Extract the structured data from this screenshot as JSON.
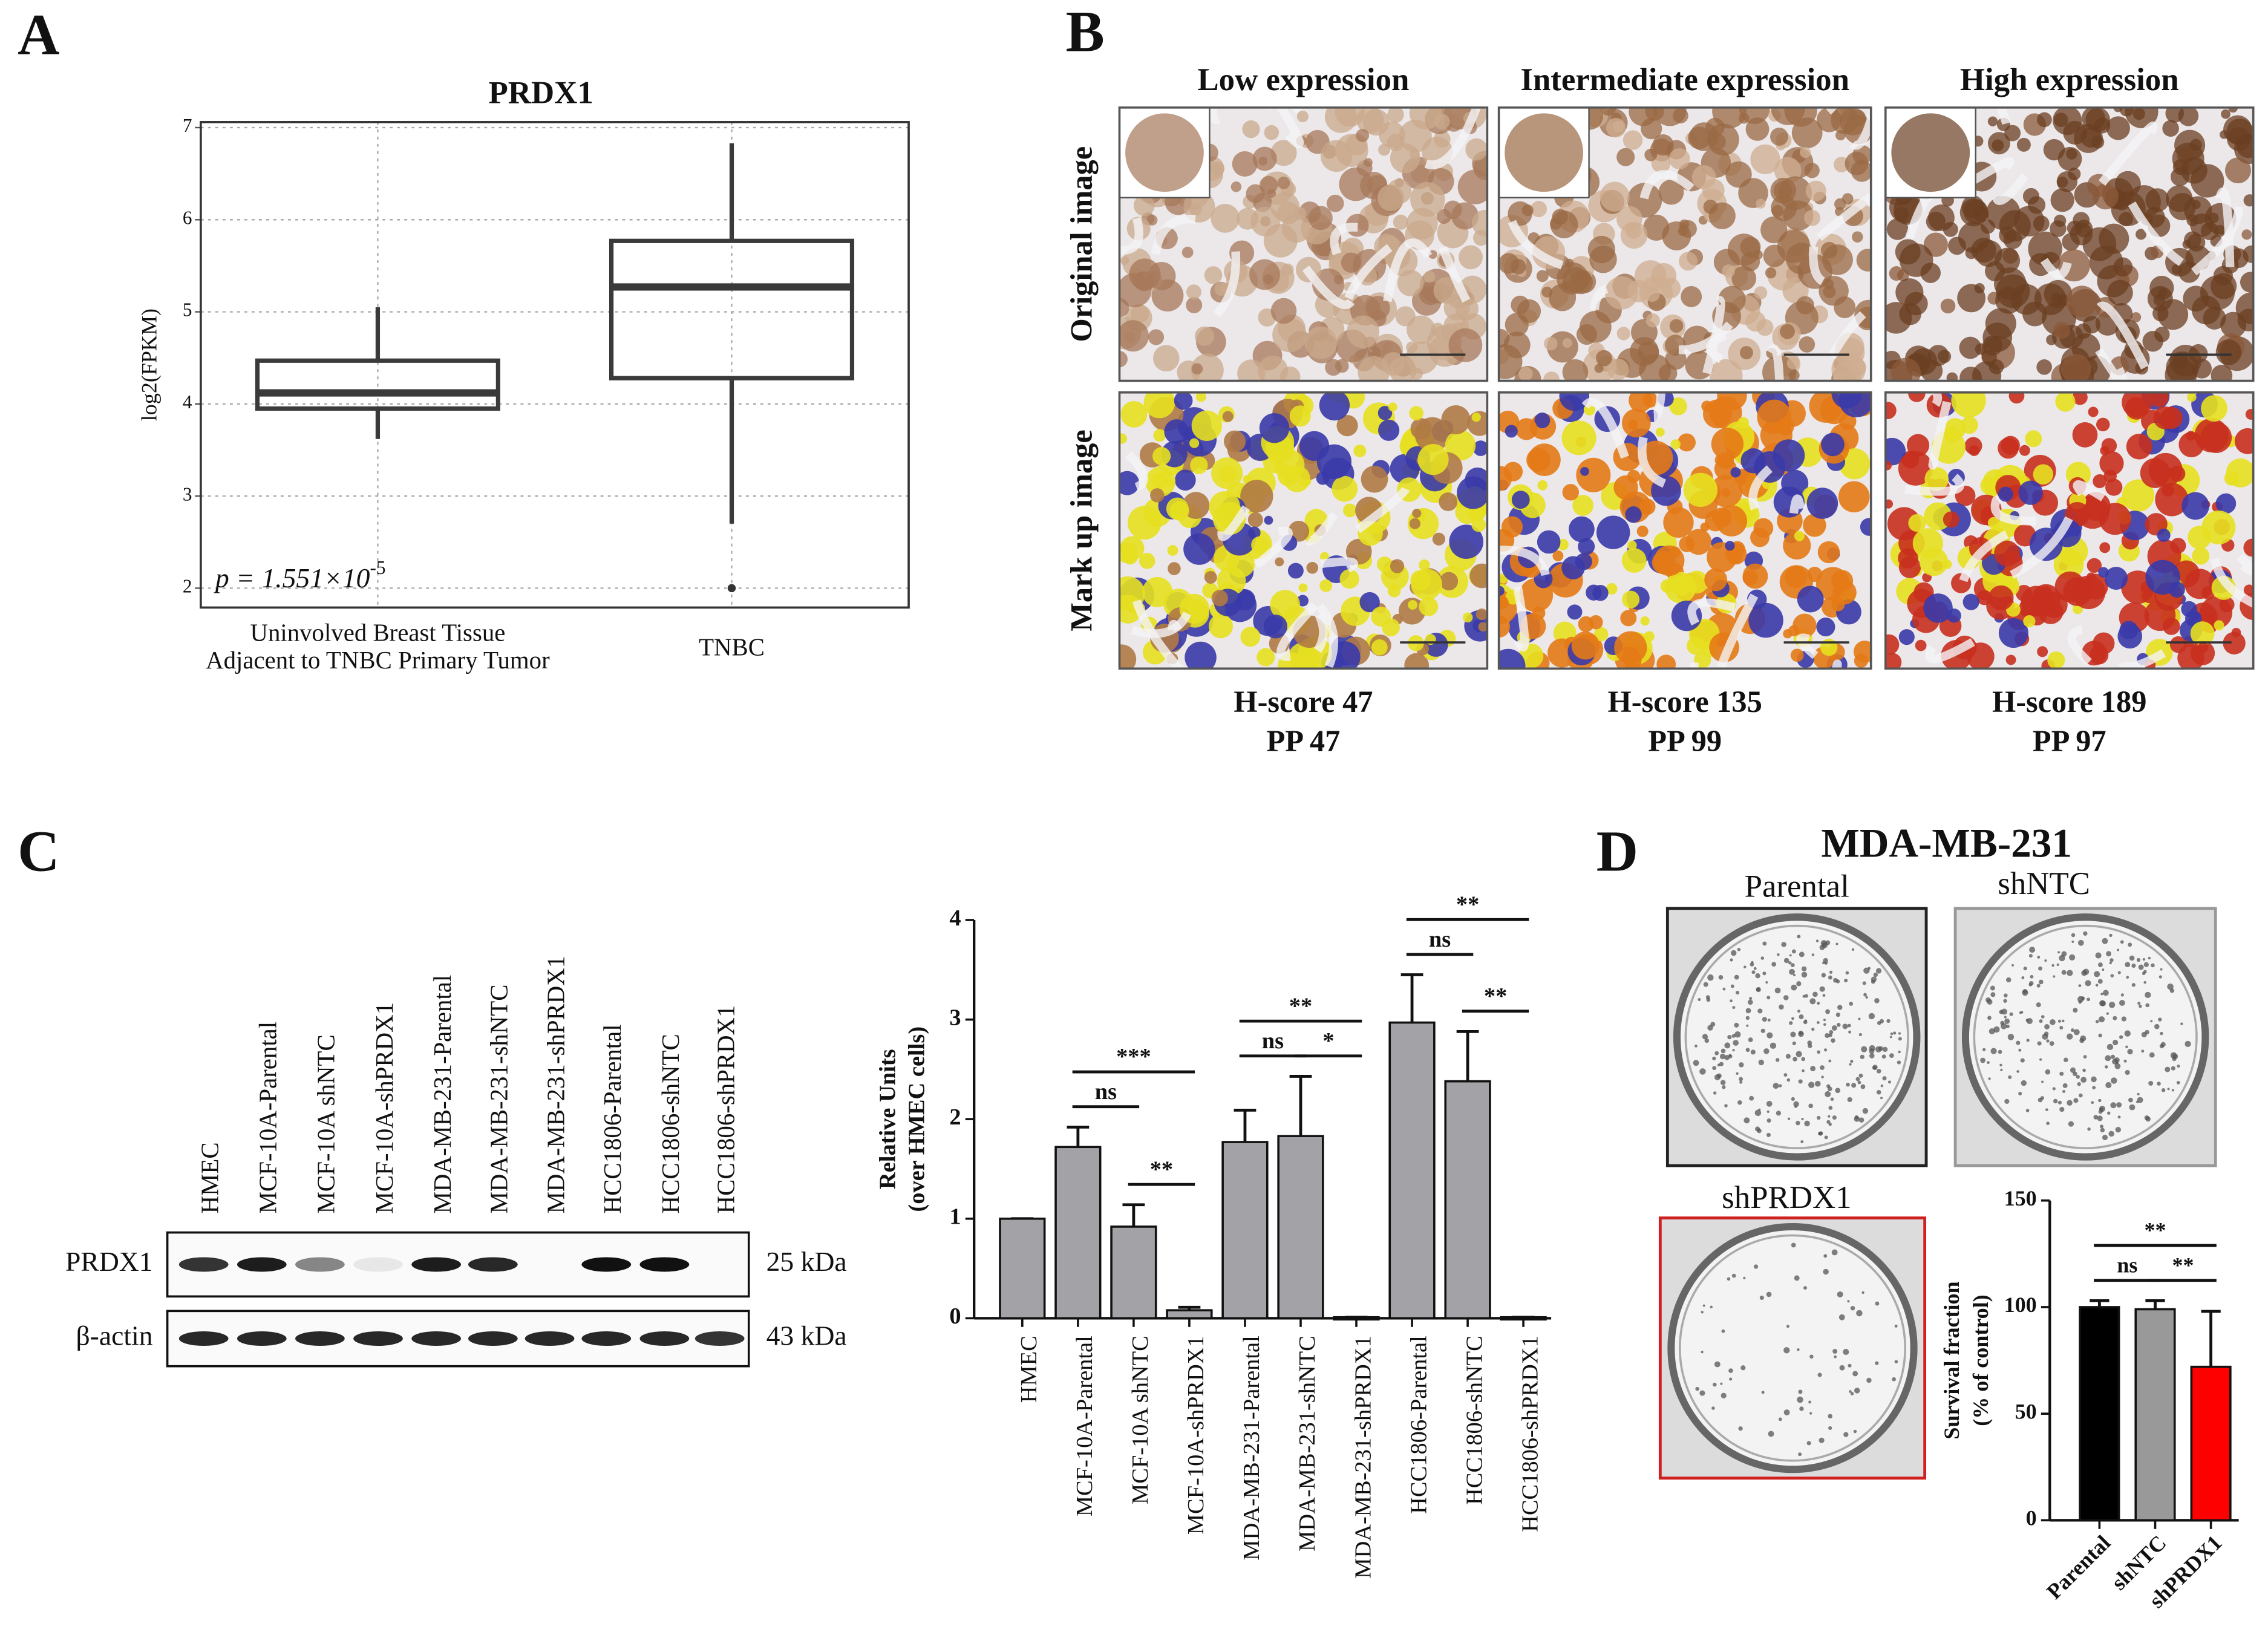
{
  "panel_labels": [
    "A",
    "B",
    "C",
    "D"
  ],
  "chart_data": [
    {
      "type": "box",
      "title": "PRDX1",
      "y_label": "log2(FPKM)",
      "categories": [
        [
          "Uninvolved Breast Tissue",
          "Adjacent to TNBC Primary Tumor"
        ],
        [
          "TNBC"
        ]
      ],
      "boxes": [
        {
          "whislo": 3.62,
          "q1": 3.95,
          "median": 4.12,
          "q3": 4.47,
          "whishi": 5.05,
          "fliers": []
        },
        {
          "whislo": 2.7,
          "q1": 4.28,
          "median": 5.27,
          "q3": 5.77,
          "whishi": 6.83,
          "fliers": [
            2.0
          ]
        }
      ],
      "ylim": [
        1.79,
        7.06
      ],
      "yticks": [
        2,
        3,
        4,
        5,
        6,
        7
      ],
      "grid": true,
      "annotation": {
        "text": "p = 1.551×10",
        "superscript": "-5"
      }
    },
    {
      "type": "bar",
      "y_label": [
        "Relative Units",
        "(over HMEC cells)"
      ],
      "categories": [
        "HMEC",
        "MCF-10A-Parental",
        "MCF-10A shNTC",
        "MCF-10A-shPRDX1",
        "MDA-MB-231-Parental",
        "MDA-MB-231-shNTC",
        "MDA-MB-231-shPRDX1",
        "HCC1806-Parental",
        "HCC1806-shNTC",
        "HCC1806-shPRDX1"
      ],
      "values": [
        1.0,
        1.72,
        0.92,
        0.08,
        1.77,
        1.83,
        0.01,
        2.97,
        2.38,
        0.01
      ],
      "errors": [
        0,
        0.2,
        0.22,
        0.03,
        0.32,
        0.6,
        0,
        0.48,
        0.5,
        0
      ],
      "color": "#a3a3a7",
      "ylim": [
        0,
        4
      ],
      "yticks": [
        0,
        1,
        2,
        3,
        4
      ],
      "significance": [
        {
          "between": [
            "MCF-10A-Parental",
            "MCF-10A shNTC"
          ],
          "label": "ns"
        },
        {
          "between": [
            "MCF-10A shNTC",
            "MCF-10A-shPRDX1"
          ],
          "label": "**"
        },
        {
          "between": [
            "MCF-10A-Parental",
            "MCF-10A-shPRDX1"
          ],
          "label": "***"
        },
        {
          "between": [
            "MDA-MB-231-Parental",
            "MDA-MB-231-shNTC"
          ],
          "label": "ns"
        },
        {
          "between": [
            "MDA-MB-231-shNTC",
            "MDA-MB-231-shPRDX1"
          ],
          "label": "*"
        },
        {
          "between": [
            "MDA-MB-231-Parental",
            "MDA-MB-231-shPRDX1"
          ],
          "label": "**"
        },
        {
          "between": [
            "HCC1806-Parental",
            "HCC1806-shNTC"
          ],
          "label": "ns"
        },
        {
          "between": [
            "HCC1806-shNTC",
            "HCC1806-shPRDX1"
          ],
          "label": "**"
        },
        {
          "between": [
            "HCC1806-Parental",
            "HCC1806-shPRDX1"
          ],
          "label": "**"
        }
      ]
    },
    {
      "type": "bar",
      "y_label": [
        "Survival fraction",
        "(% of control)"
      ],
      "categories": [
        "Parental",
        "shNTC",
        "shPRDX1"
      ],
      "values": [
        100,
        99,
        72
      ],
      "errors": [
        3,
        4,
        26
      ],
      "colors": [
        "#000000",
        "#999999",
        "#ff0000"
      ],
      "ylim": [
        0,
        150
      ],
      "yticks": [
        0,
        50,
        100,
        150
      ],
      "significance": [
        {
          "between": [
            "Parental",
            "shNTC"
          ],
          "label": "ns"
        },
        {
          "between": [
            "shNTC",
            "shPRDX1"
          ],
          "label": "**"
        },
        {
          "between": [
            "Parental",
            "shPRDX1"
          ],
          "label": "**"
        }
      ]
    }
  ],
  "ihc": {
    "columns": [
      "Low expression",
      "Intermediate expression",
      "High expression"
    ],
    "rows": [
      "Original image",
      "Mark up image"
    ],
    "scores": [
      [
        "H-score 47",
        "PP 47"
      ],
      [
        "H-score 135",
        "PP 99"
      ],
      [
        "H-score 189",
        "PP 97"
      ]
    ]
  },
  "blot": {
    "lanes": [
      "HMEC",
      "MCF-10A-Parental",
      "MCF-10A shNTC",
      "MCF-10A-shPRDX1",
      "MDA-MB-231-Parental",
      "MDA-MB-231-shNTC",
      "MDA-MB-231-shPRDX1",
      "HCC1806-Parental",
      "HCC1806-shNTC",
      "HCC1806-shPRDX1"
    ],
    "rows": [
      "PRDX1",
      "β-actin"
    ],
    "sizes": [
      "25 kDa",
      "43 kDa"
    ]
  },
  "colony": {
    "title": "MDA-MB-231",
    "plates": [
      "Parental",
      "shNTC",
      "shPRDX1"
    ]
  }
}
